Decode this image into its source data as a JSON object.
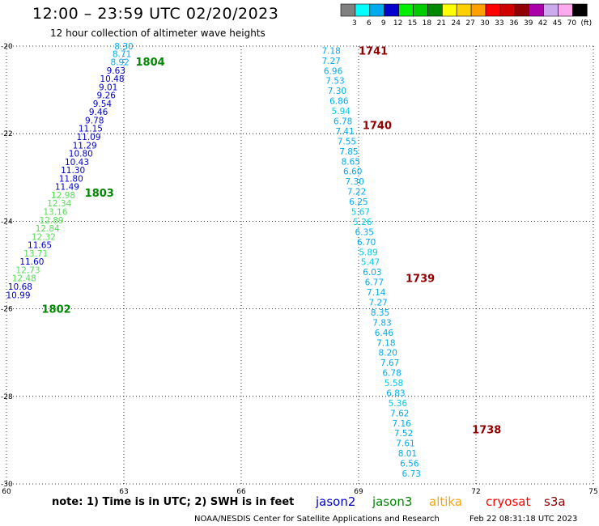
{
  "header": {
    "title": "12:00 – 23:59 UTC 02/20/2023",
    "subtitle": "12 hour collection of altimeter wave heights"
  },
  "colorbar": {
    "labels": [
      "3",
      "6",
      "9",
      "12",
      "15",
      "18",
      "21",
      "24",
      "27",
      "30",
      "33",
      "36",
      "39",
      "42",
      "45",
      "70",
      "(ft)"
    ],
    "colors": [
      "#808080",
      "#00ffff",
      "#00aaee",
      "#0000cc",
      "#00ee00",
      "#00cc00",
      "#008800",
      "#ffff00",
      "#ffd000",
      "#ffa000",
      "#ff0000",
      "#d00000",
      "#900000",
      "#aa00aa",
      "#ccaaee",
      "#ffaaee",
      "#000000"
    ]
  },
  "legend": [
    {
      "name": "jason2",
      "color": "#0000cc"
    },
    {
      "name": "jason3",
      "color": "#008800"
    },
    {
      "name": "altika",
      "color": "#ffa000"
    },
    {
      "name": "cryosat",
      "color": "#ff0000"
    },
    {
      "name": "s3a",
      "color": "#900000"
    }
  ],
  "footer": {
    "note": "note:  1) Time is in UTC;  2) SWH is in feet",
    "credit": "NOAA/NESDIS Center for Satellite Applications and Research",
    "timestamp": "Feb 22 08:31:18 UTC 2023"
  },
  "chart_data": {
    "type": "scatter",
    "xlabel": "",
    "ylabel": "",
    "xlim": [
      60,
      75
    ],
    "ylim": [
      -30,
      -20
    ],
    "x_ticks": [
      "60",
      "63",
      "66",
      "69",
      "72",
      "75"
    ],
    "y_ticks": [
      "-20",
      "-22",
      "-24",
      "-26",
      "-28",
      "-30"
    ],
    "grid": true,
    "tracks": [
      {
        "color": "#0000cc",
        "time_labels": [
          {
            "text": "1804",
            "lon": 63.3,
            "lat": -20.35,
            "color": "#008800"
          },
          {
            "text": "1803",
            "lon": 62.0,
            "lat": -23.35,
            "color": "#008800"
          },
          {
            "text": "1802",
            "lon": 60.9,
            "lat": -26.0,
            "color": "#008800"
          }
        ],
        "points": [
          {
            "lon": 63.0,
            "lat": -20.0,
            "value": "8.30",
            "color": "#00aaee"
          },
          {
            "lon": 62.95,
            "lat": -20.18,
            "value": "8.71",
            "color": "#00aaee"
          },
          {
            "lon": 62.9,
            "lat": -20.36,
            "value": "8.92",
            "color": "#00aaee"
          },
          {
            "lon": 62.8,
            "lat": -20.55,
            "value": "9.63",
            "color": "#0000cc"
          },
          {
            "lon": 62.7,
            "lat": -20.74,
            "value": "10.48",
            "color": "#0000cc"
          },
          {
            "lon": 62.6,
            "lat": -20.93,
            "value": "9.01",
            "color": "#0000cc"
          },
          {
            "lon": 62.55,
            "lat": -21.12,
            "value": "9.26",
            "color": "#0000cc"
          },
          {
            "lon": 62.45,
            "lat": -21.31,
            "value": "9.54",
            "color": "#0000cc"
          },
          {
            "lon": 62.35,
            "lat": -21.5,
            "value": "9.46",
            "color": "#0000cc"
          },
          {
            "lon": 62.25,
            "lat": -21.69,
            "value": "9.78",
            "color": "#0000cc"
          },
          {
            "lon": 62.15,
            "lat": -21.88,
            "value": "11.15",
            "color": "#0000cc"
          },
          {
            "lon": 62.1,
            "lat": -22.07,
            "value": "11.09",
            "color": "#0000cc"
          },
          {
            "lon": 62.0,
            "lat": -22.26,
            "value": "11.29",
            "color": "#0000cc"
          },
          {
            "lon": 61.9,
            "lat": -22.45,
            "value": "10.80",
            "color": "#0000cc"
          },
          {
            "lon": 61.8,
            "lat": -22.64,
            "value": "10.43",
            "color": "#0000cc"
          },
          {
            "lon": 61.7,
            "lat": -22.83,
            "value": "11.30",
            "color": "#0000cc"
          },
          {
            "lon": 61.65,
            "lat": -23.02,
            "value": "11.80",
            "color": "#0000cc"
          },
          {
            "lon": 61.55,
            "lat": -23.21,
            "value": "11.49",
            "color": "#0000cc"
          },
          {
            "lon": 61.45,
            "lat": -23.4,
            "value": "12.98",
            "color": "#55dd55"
          },
          {
            "lon": 61.35,
            "lat": -23.59,
            "value": "12.34",
            "color": "#55dd55"
          },
          {
            "lon": 61.25,
            "lat": -23.78,
            "value": "13.16",
            "color": "#55dd55"
          },
          {
            "lon": 61.15,
            "lat": -23.97,
            "value": "12.89",
            "color": "#55dd55"
          },
          {
            "lon": 61.05,
            "lat": -24.16,
            "value": "12.84",
            "color": "#55dd55"
          },
          {
            "lon": 60.95,
            "lat": -24.35,
            "value": "12.32",
            "color": "#55dd55"
          },
          {
            "lon": 60.85,
            "lat": -24.54,
            "value": "11.65",
            "color": "#0000cc"
          },
          {
            "lon": 60.75,
            "lat": -24.73,
            "value": "13.71",
            "color": "#55dd55"
          },
          {
            "lon": 60.65,
            "lat": -24.92,
            "value": "11.60",
            "color": "#0000cc"
          },
          {
            "lon": 60.55,
            "lat": -25.11,
            "value": "12.73",
            "color": "#55dd55"
          },
          {
            "lon": 60.45,
            "lat": -25.3,
            "value": "12.48",
            "color": "#55dd55"
          },
          {
            "lon": 60.35,
            "lat": -25.49,
            "value": "10.68",
            "color": "#0000cc"
          },
          {
            "lon": 60.3,
            "lat": -25.68,
            "value": "10.99",
            "color": "#0000cc"
          }
        ]
      },
      {
        "color": "#00aaee",
        "time_labels": [
          {
            "text": "1741",
            "lon": 69.0,
            "lat": -20.1,
            "color": "#900000"
          },
          {
            "text": "1740",
            "lon": 69.1,
            "lat": -21.8,
            "color": "#900000"
          },
          {
            "text": "1739",
            "lon": 70.2,
            "lat": -25.3,
            "color": "#900000"
          },
          {
            "text": "1738",
            "lon": 71.9,
            "lat": -28.75,
            "color": "#900000"
          }
        ],
        "points": [
          {
            "lon": 68.3,
            "lat": -20.1,
            "value": "7.18",
            "color": "#00aaee"
          },
          {
            "lon": 68.3,
            "lat": -20.33,
            "value": "7.27",
            "color": "#00aaee"
          },
          {
            "lon": 68.35,
            "lat": -20.56,
            "value": "6.96",
            "color": "#00aaee"
          },
          {
            "lon": 68.4,
            "lat": -20.79,
            "value": "7.53",
            "color": "#00aaee"
          },
          {
            "lon": 68.45,
            "lat": -21.02,
            "value": "7.30",
            "color": "#00aaee"
          },
          {
            "lon": 68.5,
            "lat": -21.25,
            "value": "6.86",
            "color": "#00aaee"
          },
          {
            "lon": 68.55,
            "lat": -21.48,
            "value": "5.94",
            "color": "#00ccee"
          },
          {
            "lon": 68.6,
            "lat": -21.71,
            "value": "6.78",
            "color": "#00aaee"
          },
          {
            "lon": 68.65,
            "lat": -21.94,
            "value": "7.41",
            "color": "#00aaee"
          },
          {
            "lon": 68.7,
            "lat": -22.17,
            "value": "7.55",
            "color": "#00aaee"
          },
          {
            "lon": 68.75,
            "lat": -22.4,
            "value": "7.85",
            "color": "#00aaee"
          },
          {
            "lon": 68.8,
            "lat": -22.63,
            "value": "8.65",
            "color": "#00aaee"
          },
          {
            "lon": 68.85,
            "lat": -22.86,
            "value": "6.60",
            "color": "#00aaee"
          },
          {
            "lon": 68.9,
            "lat": -23.09,
            "value": "7.30",
            "color": "#00aaee"
          },
          {
            "lon": 68.95,
            "lat": -23.32,
            "value": "7.22",
            "color": "#00aaee"
          },
          {
            "lon": 69.0,
            "lat": -23.55,
            "value": "6.25",
            "color": "#00aaee"
          },
          {
            "lon": 69.05,
            "lat": -23.78,
            "value": "5.67",
            "color": "#00ccee"
          },
          {
            "lon": 69.1,
            "lat": -24.01,
            "value": "5.26",
            "color": "#00ccee"
          },
          {
            "lon": 69.15,
            "lat": -24.24,
            "value": "6.35",
            "color": "#00aaee"
          },
          {
            "lon": 69.2,
            "lat": -24.47,
            "value": "6.70",
            "color": "#00aaee"
          },
          {
            "lon": 69.25,
            "lat": -24.7,
            "value": "5.89",
            "color": "#00ccee"
          },
          {
            "lon": 69.3,
            "lat": -24.93,
            "value": "5.47",
            "color": "#00ccee"
          },
          {
            "lon": 69.35,
            "lat": -25.16,
            "value": "6.03",
            "color": "#00aaee"
          },
          {
            "lon": 69.4,
            "lat": -25.39,
            "value": "6.77",
            "color": "#00aaee"
          },
          {
            "lon": 69.45,
            "lat": -25.62,
            "value": "7.14",
            "color": "#00aaee"
          },
          {
            "lon": 69.5,
            "lat": -25.85,
            "value": "7.27",
            "color": "#00aaee"
          },
          {
            "lon": 69.55,
            "lat": -26.08,
            "value": "8.35",
            "color": "#00aaee"
          },
          {
            "lon": 69.6,
            "lat": -26.31,
            "value": "7.83",
            "color": "#00aaee"
          },
          {
            "lon": 69.65,
            "lat": -26.54,
            "value": "6.46",
            "color": "#00aaee"
          },
          {
            "lon": 69.7,
            "lat": -26.77,
            "value": "7.18",
            "color": "#00aaee"
          },
          {
            "lon": 69.75,
            "lat": -27.0,
            "value": "8.20",
            "color": "#00aaee"
          },
          {
            "lon": 69.8,
            "lat": -27.23,
            "value": "7.67",
            "color": "#00aaee"
          },
          {
            "lon": 69.85,
            "lat": -27.46,
            "value": "6.78",
            "color": "#00aaee"
          },
          {
            "lon": 69.9,
            "lat": -27.69,
            "value": "5.58",
            "color": "#00ccee"
          },
          {
            "lon": 69.95,
            "lat": -27.92,
            "value": "6.83",
            "color": "#00aaee"
          },
          {
            "lon": 70.0,
            "lat": -28.15,
            "value": "5.36",
            "color": "#00ccee"
          },
          {
            "lon": 70.05,
            "lat": -28.38,
            "value": "7.62",
            "color": "#00aaee"
          },
          {
            "lon": 70.1,
            "lat": -28.61,
            "value": "7.16",
            "color": "#00aaee"
          },
          {
            "lon": 70.15,
            "lat": -28.84,
            "value": "7.52",
            "color": "#00aaee"
          },
          {
            "lon": 70.2,
            "lat": -29.07,
            "value": "7.61",
            "color": "#00aaee"
          },
          {
            "lon": 70.25,
            "lat": -29.3,
            "value": "8.01",
            "color": "#00aaee"
          },
          {
            "lon": 70.3,
            "lat": -29.53,
            "value": "6.56",
            "color": "#00aaee"
          },
          {
            "lon": 70.35,
            "lat": -29.76,
            "value": "6.73",
            "color": "#00aaee"
          }
        ]
      }
    ]
  }
}
